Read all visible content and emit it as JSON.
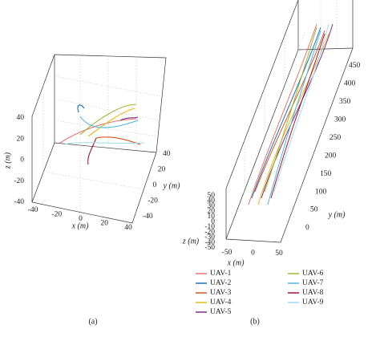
{
  "figure": {
    "panels": [
      {
        "label": "(a)",
        "x_axis": {
          "label": "x (m)",
          "ticks": [
            -40,
            -20,
            0,
            20,
            40
          ]
        },
        "y_axis": {
          "label": "y (m)",
          "ticks": [
            -40,
            -20,
            0,
            20,
            40
          ]
        },
        "z_axis": {
          "label": "z (m)",
          "ticks": [
            -40,
            -20,
            0,
            20,
            40
          ]
        }
      },
      {
        "label": "(b)",
        "x_axis": {
          "label": "x (m)",
          "ticks": [
            -50,
            0,
            50
          ]
        },
        "y_axis": {
          "label": "y (m)",
          "ticks": [
            0,
            50,
            100,
            150,
            200,
            250,
            300,
            350,
            400,
            450
          ]
        },
        "z_axis": {
          "label": "z (m)",
          "ticks": [
            -50,
            -40,
            -30,
            -20,
            -10,
            0,
            10,
            20,
            30,
            40,
            50
          ]
        }
      }
    ],
    "legend": [
      {
        "name": "UAV-1",
        "color": "#e8736b"
      },
      {
        "name": "UAV-2",
        "color": "#1f6fb5"
      },
      {
        "name": "UAV-3",
        "color": "#d9541e"
      },
      {
        "name": "UAV-4",
        "color": "#e5b718"
      },
      {
        "name": "UAV-5",
        "color": "#7e2f8e"
      },
      {
        "name": "UAV-6",
        "color": "#9ab832"
      },
      {
        "name": "UAV-7",
        "color": "#4fb6e3"
      },
      {
        "name": "UAV-8",
        "color": "#a2142f"
      },
      {
        "name": "UAV-9",
        "color": "#9fdcee"
      }
    ]
  }
}
